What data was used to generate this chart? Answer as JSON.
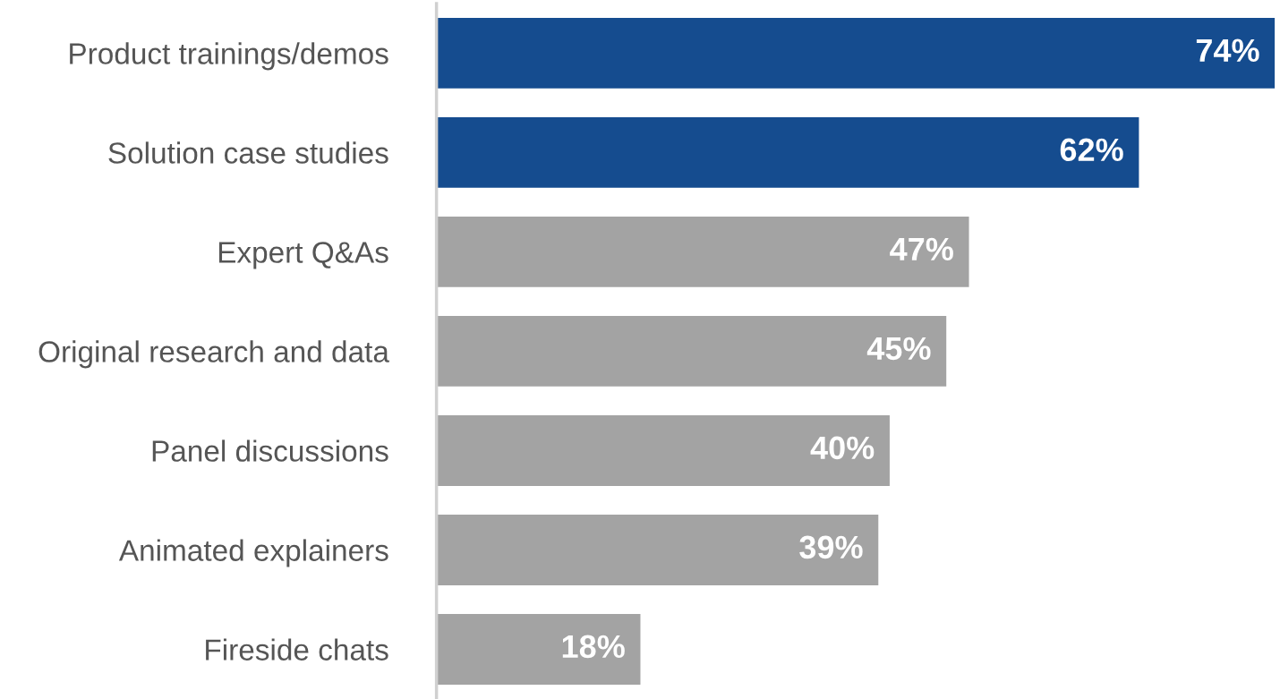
{
  "chart_data": {
    "type": "bar",
    "orientation": "horizontal",
    "categories": [
      "Product trainings/demos",
      "Solution case studies",
      "Expert Q&As",
      "Original research and data",
      "Panel discussions",
      "Animated explainers",
      "Fireside chats"
    ],
    "values": [
      74,
      62,
      47,
      45,
      40,
      39,
      18
    ],
    "colors": [
      "#154c8f",
      "#154c8f",
      "#a3a3a3",
      "#a3a3a3",
      "#a3a3a3",
      "#a3a3a3",
      "#a3a3a3"
    ],
    "value_labels": [
      "74%",
      "62%",
      "47%",
      "45%",
      "40%",
      "39%",
      "18%"
    ],
    "xlim": [
      0,
      74
    ],
    "tick_labels": "y",
    "grid": false,
    "legend": false
  }
}
